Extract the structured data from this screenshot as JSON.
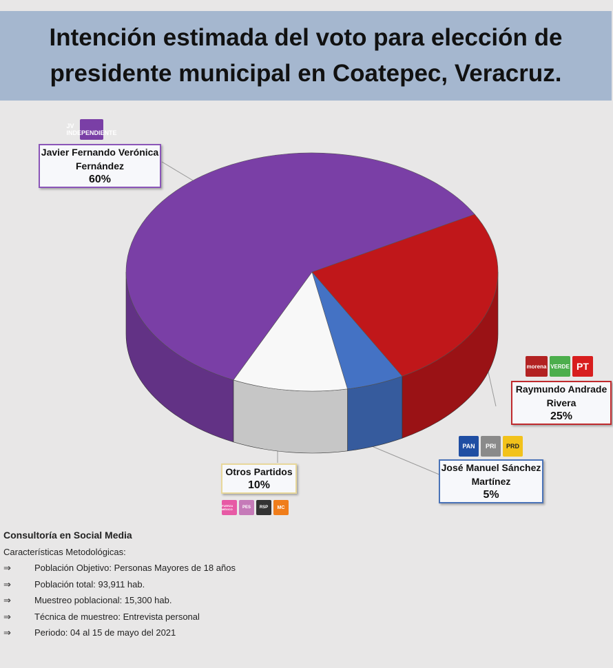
{
  "title": "Intención estimada del voto para elección de presidente municipal en Coatepec, Veracruz.",
  "chart_data": {
    "type": "pie",
    "title": "Intención estimada del voto para elección de presidente municipal en Coatepec, Veracruz.",
    "slices": [
      {
        "name": "Raymundo Andrade Rivera",
        "value": 25,
        "label": "25%",
        "color": "#c0171a",
        "parties": [
          "morena",
          "VERDE",
          "PT"
        ]
      },
      {
        "name": "José Manuel Sánchez Martínez",
        "value": 5,
        "label": "5%",
        "color": "#4472c4",
        "parties": [
          "PAN",
          "PRI",
          "PRD"
        ]
      },
      {
        "name": "Otros Partidos",
        "value": 10,
        "label": "10%",
        "color": "#f8f8f8",
        "parties": [
          "FUERZA MÉXICO",
          "PES",
          "RSP",
          "MC"
        ]
      },
      {
        "name": "Javier Fernando Verónica Fernández",
        "value": 60,
        "label": "60%",
        "color": "#7a3fa6",
        "parties": [
          "JV INDEPENDIENTE"
        ]
      }
    ]
  },
  "footer": {
    "heading": "Consultoría en Social Media",
    "subheading": "Características Metodológicas:",
    "arrow": "⇒",
    "items": [
      "Población Objetivo: Personas Mayores de 18 años",
      "Población total:  93,911 hab.",
      "Muestreo poblacional: 15,300 hab.",
      "Técnica de muestreo: Entrevista personal",
      "Periodo:  04 al 15 de mayo del 2021"
    ]
  }
}
